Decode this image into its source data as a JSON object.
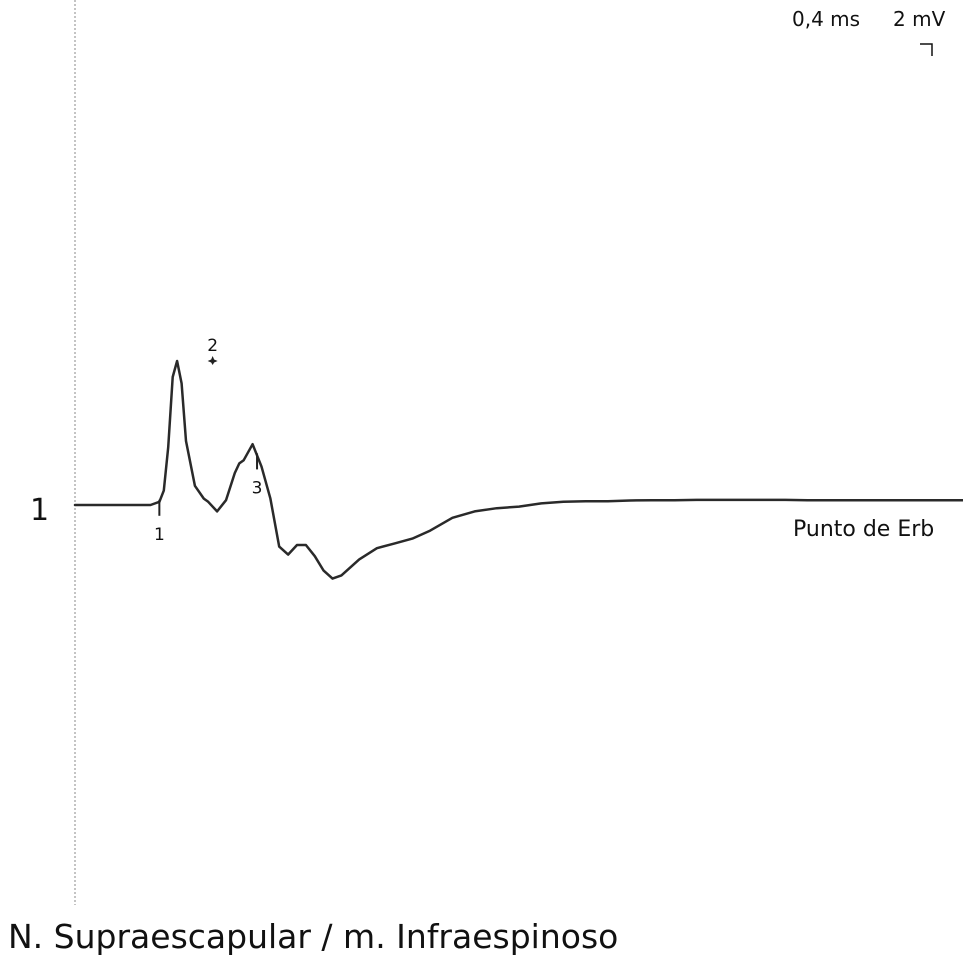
{
  "chart_data": {
    "type": "line",
    "title": "N. Supraescapular / m. Infraespinoso",
    "scale": {
      "time": "0,4 ms",
      "amplitude": "2 mV"
    },
    "traces": [
      {
        "index_label": "1",
        "label": "Punto de Erb",
        "x_unit": "ms",
        "y_unit": "mV",
        "x": [
          0.0,
          0.5,
          1.0,
          1.3,
          1.5,
          1.7,
          1.9,
          2.0,
          2.1,
          2.2,
          2.3,
          2.4,
          2.5,
          2.7,
          2.9,
          3.0,
          3.2,
          3.4,
          3.6,
          3.7,
          3.8,
          4.0,
          4.2,
          4.4,
          4.6,
          4.8,
          5.0,
          5.2,
          5.4,
          5.6,
          5.8,
          6.0,
          6.4,
          6.8,
          7.2,
          7.6,
          8.0,
          8.5,
          9.0,
          9.5,
          10.0,
          10.5,
          11.0,
          11.5,
          12.0,
          12.5,
          13.0,
          13.5,
          14.0,
          14.5,
          15.0,
          15.5,
          16.0,
          16.5,
          17.0,
          17.5,
          18.0,
          18.5,
          19.0,
          19.5,
          20.0
        ],
        "y": [
          0.0,
          0.0,
          0.0,
          0.0,
          0.0,
          0.0,
          0.1,
          0.45,
          1.8,
          4.0,
          4.5,
          3.8,
          2.0,
          0.6,
          0.2,
          0.1,
          -0.2,
          0.15,
          1.0,
          1.3,
          1.4,
          1.9,
          1.2,
          0.2,
          -1.3,
          -1.55,
          -1.25,
          -1.25,
          -1.6,
          -2.05,
          -2.3,
          -2.2,
          -1.7,
          -1.35,
          -1.2,
          -1.05,
          -0.8,
          -0.4,
          -0.2,
          -0.1,
          -0.05,
          0.05,
          0.1,
          0.12,
          0.12,
          0.14,
          0.15,
          0.15,
          0.16,
          0.16,
          0.16,
          0.16,
          0.16,
          0.15,
          0.15,
          0.15,
          0.15,
          0.15,
          0.15,
          0.15,
          0.15
        ]
      }
    ],
    "markers": [
      {
        "label": "1",
        "x": 1.9,
        "type": "tick-below"
      },
      {
        "label": "2",
        "x": 3.1,
        "type": "peak"
      },
      {
        "label": "3",
        "x": 4.1,
        "type": "tick-below"
      }
    ]
  }
}
